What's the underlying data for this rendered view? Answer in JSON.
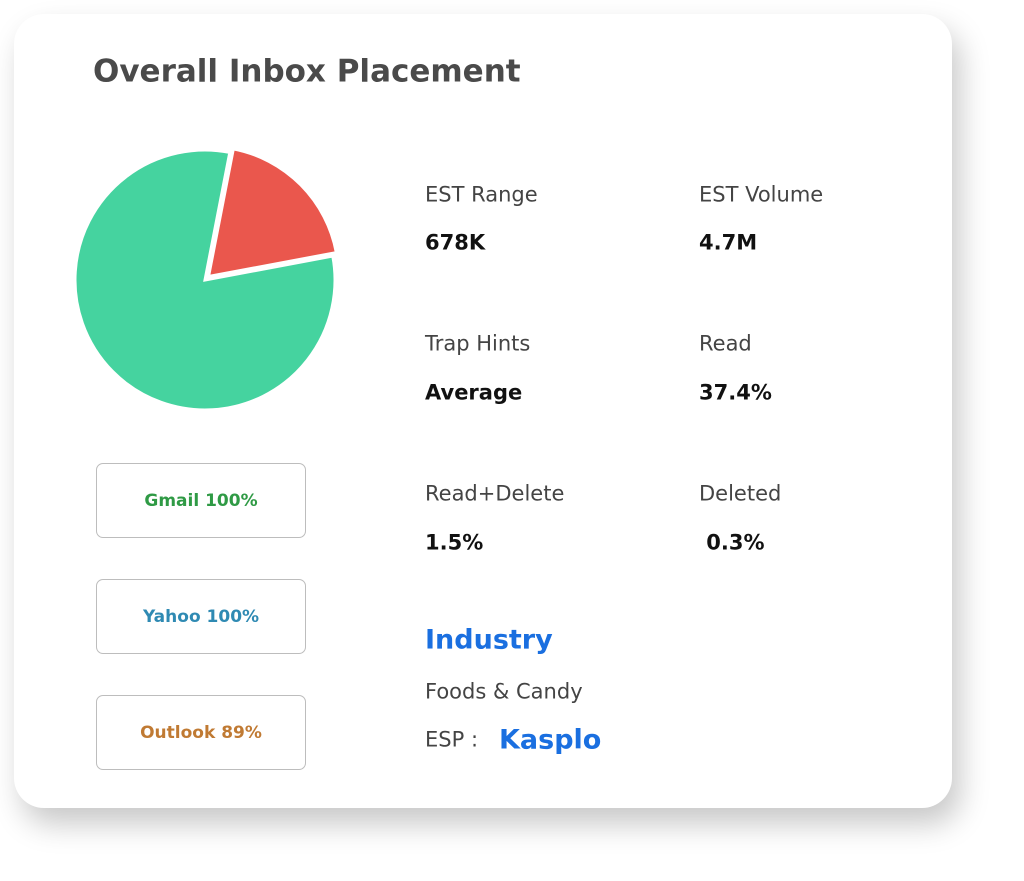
{
  "title": "Overall Inbox Placement",
  "chart_data": {
    "type": "pie",
    "values": [
      19,
      81
    ],
    "colors": [
      "#ea574d",
      "#45d39f"
    ]
  },
  "providers": [
    {
      "label": "Gmail 100%",
      "color": "#2f9a45"
    },
    {
      "label": "Yahoo 100%",
      "color": "#2f8ab3"
    },
    {
      "label": "Outlook 89%",
      "color": "#c07a33"
    }
  ],
  "stats": [
    {
      "label": "EST Range",
      "value": "678K"
    },
    {
      "label": "EST Volume",
      "value": "4.7M"
    },
    {
      "label": "Trap Hints",
      "value": "Average"
    },
    {
      "label": "Read",
      "value": "37.4%"
    },
    {
      "label": "Read+Delete",
      "value": "1.5%"
    },
    {
      "label": "Deleted",
      "value": " 0.3%"
    }
  ],
  "industry": {
    "heading": "Industry",
    "value": "Foods & Candy"
  },
  "esp": {
    "label": "ESP :",
    "value": "Kasplo"
  }
}
